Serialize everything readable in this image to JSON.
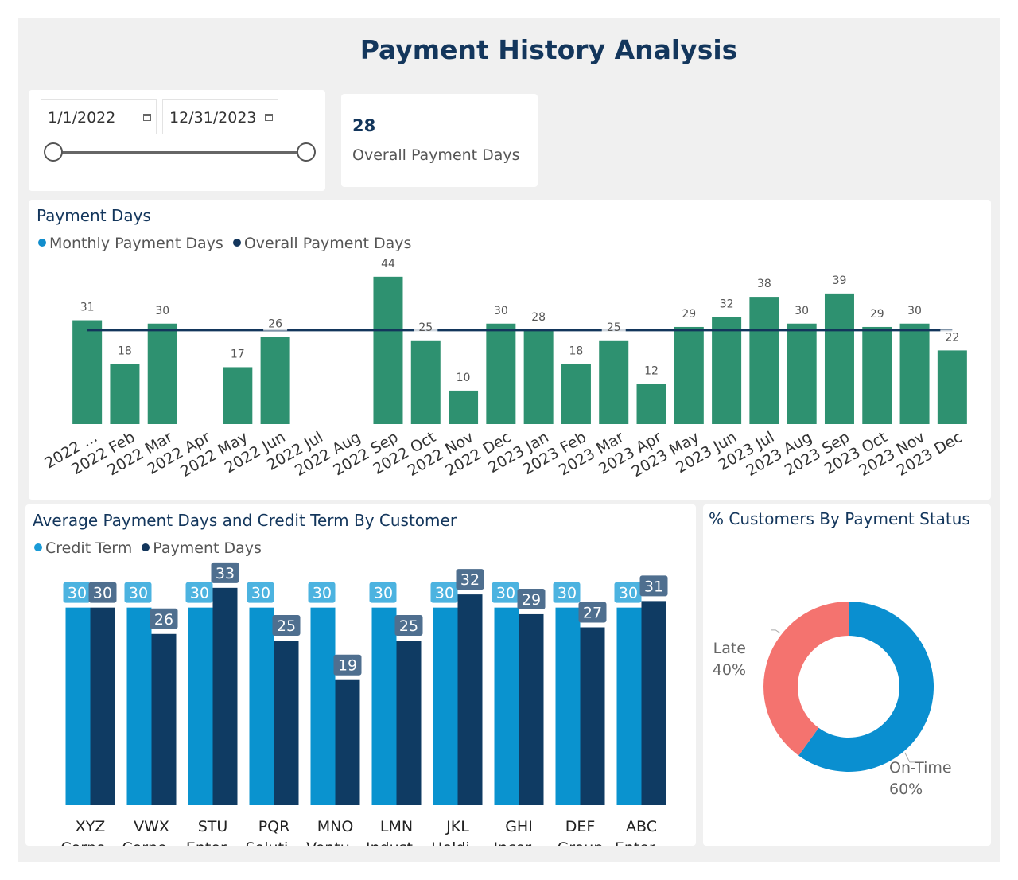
{
  "title": "Payment History Analysis",
  "slicer": {
    "start_date": "1/1/2022",
    "end_date": "12/31/2023",
    "start_icon": "calendar-icon",
    "end_icon": "calendar-icon"
  },
  "kpi": {
    "value": "28",
    "label": "Overall Payment Days"
  },
  "payment_days_chart": {
    "title": "Payment Days",
    "legend": [
      {
        "label": "Monthly Payment Days",
        "color": "#118dcc"
      },
      {
        "label": "Overall Payment Days",
        "color": "#13365c"
      }
    ]
  },
  "customer_chart": {
    "title": "Average Payment Days and Credit Term By Customer",
    "legend": [
      {
        "label": "Credit Term",
        "color": "#1a9bd7"
      },
      {
        "label": "Payment Days",
        "color": "#13365c"
      }
    ]
  },
  "status_chart": {
    "title": "% Customers By Payment Status"
  },
  "colors": {
    "bar_green": "#2e9170",
    "line_navy": "#13365c",
    "credit_blue": "#0a93cf",
    "payment_navy": "#0f3b63",
    "late_red": "#f4736f",
    "ontime_blue": "#0a8fd0"
  },
  "chart_data": [
    {
      "type": "bar",
      "title": "Payment Days",
      "categories": [
        "2022 ...",
        "2022 Feb",
        "2022 Mar",
        "2022 Apr",
        "2022 May",
        "2022 Jun",
        "2022 Jul",
        "2022 Aug",
        "2022 Sep",
        "2022 Oct",
        "2022 Nov",
        "2022 Dec",
        "2023 Jan",
        "2023 Feb",
        "2023 Mar",
        "2023 Apr",
        "2023 May",
        "2023 Jun",
        "2023 Jul",
        "2023 Aug",
        "2023 Sep",
        "2023 Oct",
        "2023 Nov",
        "2023 Dec"
      ],
      "series": [
        {
          "name": "Monthly Payment Days",
          "type": "bar",
          "values": [
            31,
            18,
            30,
            null,
            17,
            26,
            null,
            null,
            44,
            25,
            10,
            30,
            28,
            18,
            25,
            12,
            29,
            32,
            38,
            30,
            39,
            29,
            30,
            22
          ]
        },
        {
          "name": "Overall Payment Days",
          "type": "line",
          "value": 28
        }
      ],
      "ylim": [
        0,
        48
      ]
    },
    {
      "type": "bar",
      "title": "Average Payment Days and Credit Term By Customer",
      "categories": [
        [
          "XYZ",
          "Corpo..."
        ],
        [
          "VWX",
          "Corpo..."
        ],
        [
          "STU",
          "Enter..."
        ],
        [
          "PQR",
          "Soluti..."
        ],
        [
          "MNO",
          "Ventu..."
        ],
        [
          "LMN",
          "Indust..."
        ],
        [
          "JKL",
          "Holdi..."
        ],
        [
          "GHI",
          "Incor..."
        ],
        [
          "DEF",
          "Group"
        ],
        [
          "ABC",
          "Enter..."
        ]
      ],
      "series": [
        {
          "name": "Credit Term",
          "values": [
            30,
            30,
            30,
            30,
            30,
            30,
            30,
            30,
            30,
            30
          ]
        },
        {
          "name": "Payment Days",
          "values": [
            30,
            26,
            33,
            25,
            19,
            25,
            32,
            29,
            27,
            31
          ]
        }
      ],
      "ylim": [
        0,
        36
      ]
    },
    {
      "type": "pie",
      "title": "% Customers By Payment Status",
      "donut": true,
      "slices": [
        {
          "label": "On-Time",
          "pct_label": "60%",
          "value": 60
        },
        {
          "label": "Late",
          "pct_label": "40%",
          "value": 40
        }
      ]
    }
  ]
}
